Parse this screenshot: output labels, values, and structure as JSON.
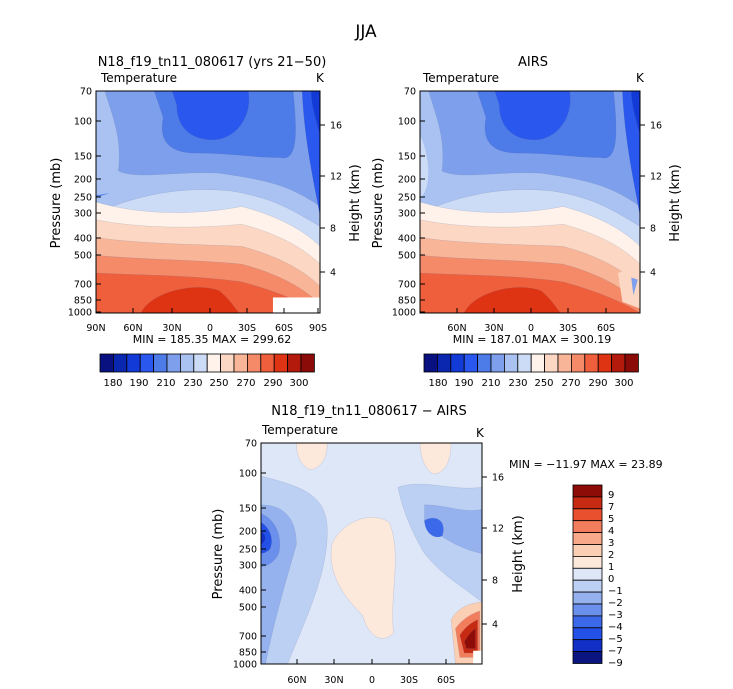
{
  "figure_title": "JJA",
  "colors": {
    "abs": [
      "#08117f",
      "#0a27b0",
      "#123ad6",
      "#2a57ee",
      "#4d7be8",
      "#7ea0ec",
      "#a9c2f2",
      "#cddcf6",
      "#fef2ea",
      "#fcd7c3",
      "#f9b597",
      "#f58a68",
      "#f05f3b",
      "#de3414",
      "#b31a0c",
      "#8a0b07"
    ],
    "anom": [
      "#0a1580",
      "#1230c8",
      "#2350e6",
      "#3c69ea",
      "#6a90ec",
      "#95b2ef",
      "#bcd0f4",
      "#dde7f8",
      "#fde9dc",
      "#fbcfb4",
      "#f7a98a",
      "#f27d5c",
      "#e9502e",
      "#c62a13",
      "#8e0c07"
    ]
  },
  "colorbar1": {
    "labels": [
      "180",
      "190",
      "210",
      "230",
      "250",
      "270",
      "290",
      "300"
    ]
  },
  "colorbar2": {
    "labels": [
      "9",
      "7",
      "5",
      "4",
      "3",
      "2",
      "1",
      "0",
      "−1",
      "−2",
      "−3",
      "−4",
      "−5",
      "−7",
      "−9"
    ]
  },
  "pressure_ticks": [
    "70",
    "100",
    "150",
    "200",
    "250",
    "300",
    "400",
    "500",
    "700",
    "850",
    "1000"
  ],
  "height_ticks": [
    "16",
    "12",
    "8",
    "4"
  ],
  "chart_data": [
    {
      "type": "heatmap",
      "panel": "model",
      "title": "N18_f19_tn11_080617 (yrs 21−50)",
      "left_label": "Temperature",
      "right_label": "K",
      "ylabel": "Pressure (mb)",
      "ylabel_right": "Height (km)",
      "xticks": [
        "90N",
        "60N",
        "30N",
        "0",
        "30S",
        "60S",
        "90S"
      ],
      "stats": "MIN = 185.35   MAX = 299.62",
      "min": 185.35,
      "max": 299.62,
      "levels": [
        180,
        190,
        200,
        210,
        220,
        230,
        240,
        250,
        260,
        270,
        280,
        290,
        300
      ],
      "latitude_range": [
        90,
        -90
      ],
      "pressure_range": [
        70,
        1000
      ],
      "height_range_km": [
        0,
        18
      ]
    },
    {
      "type": "heatmap",
      "panel": "obs",
      "title": "AIRS",
      "left_label": "Temperature",
      "right_label": "K",
      "ylabel": "Pressure (mb)",
      "ylabel_right": "Height (km)",
      "xticks": [
        "60N",
        "30N",
        "0",
        "30S",
        "60S"
      ],
      "stats": "MIN = 187.01   MAX = 300.19",
      "min": 187.01,
      "max": 300.19,
      "levels": [
        180,
        190,
        200,
        210,
        220,
        230,
        240,
        250,
        260,
        270,
        280,
        290,
        300
      ],
      "latitude_range": [
        90,
        -90
      ],
      "pressure_range": [
        70,
        1000
      ],
      "height_range_km": [
        0,
        18
      ]
    },
    {
      "type": "heatmap",
      "panel": "difference",
      "title": "N18_f19_tn11_080617 − AIRS",
      "left_label": "Temperature",
      "right_label": "K",
      "ylabel": "Pressure (mb)",
      "ylabel_right": "Height (km)",
      "xticks": [
        "60N",
        "30N",
        "0",
        "30S",
        "60S"
      ],
      "stats": "MIN = −11.97   MAX =  23.89",
      "min": -11.97,
      "max": 23.89,
      "levels": [
        -9,
        -7,
        -5,
        -4,
        -3,
        -2,
        -1,
        0,
        1,
        2,
        3,
        4,
        5,
        7,
        9
      ],
      "latitude_range": [
        90,
        -90
      ],
      "pressure_range": [
        70,
        1000
      ],
      "height_range_km": [
        0,
        18
      ]
    }
  ]
}
